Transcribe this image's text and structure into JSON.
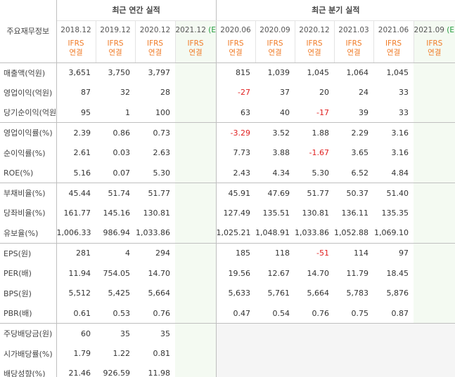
{
  "table": {
    "row_header_title": "주요재무정보",
    "groups": [
      {
        "label": "최근 연간 실적"
      },
      {
        "label": "최근 분기 실적"
      }
    ],
    "periods": [
      {
        "label": "2018.12",
        "basis_line1": "IFRS",
        "basis_line2": "연결"
      },
      {
        "label": "2019.12",
        "basis_line1": "IFRS",
        "basis_line2": "연결"
      },
      {
        "label": "2020.12",
        "basis_line1": "IFRS",
        "basis_line2": "연결"
      },
      {
        "label": "2021.12",
        "estimate": "(E)",
        "basis_line1": "IFRS",
        "basis_line2": "연결"
      },
      {
        "label": "2020.06",
        "basis_line1": "IFRS",
        "basis_line2": "연결"
      },
      {
        "label": "2020.09",
        "basis_line1": "IFRS",
        "basis_line2": "연결"
      },
      {
        "label": "2020.12",
        "basis_line1": "IFRS",
        "basis_line2": "연결"
      },
      {
        "label": "2021.03",
        "basis_line1": "IFRS",
        "basis_line2": "연결"
      },
      {
        "label": "2021.06",
        "basis_line1": "IFRS",
        "basis_line2": "연결"
      },
      {
        "label": "2021.09",
        "estimate": "(E)",
        "basis_line1": "IFRS",
        "basis_line2": "연결"
      }
    ],
    "rows": [
      {
        "label": "매출액(억원)",
        "values": [
          "3,651",
          "3,750",
          "3,797",
          "",
          "815",
          "1,039",
          "1,045",
          "1,064",
          "1,045",
          ""
        ]
      },
      {
        "label": "영업이익(억원)",
        "values": [
          "87",
          "32",
          "28",
          "",
          "-27",
          "37",
          "20",
          "24",
          "33",
          ""
        ]
      },
      {
        "label": "당기순이익(억원)",
        "values": [
          "95",
          "1",
          "100",
          "",
          "63",
          "40",
          "-17",
          "39",
          "33",
          ""
        ]
      },
      {
        "label": "영업이익률(%)",
        "values": [
          "2.39",
          "0.86",
          "0.73",
          "",
          "-3.29",
          "3.52",
          "1.88",
          "2.29",
          "3.16",
          ""
        ]
      },
      {
        "label": "순이익률(%)",
        "values": [
          "2.61",
          "0.03",
          "2.63",
          "",
          "7.73",
          "3.88",
          "-1.67",
          "3.65",
          "3.16",
          ""
        ]
      },
      {
        "label": "ROE(%)",
        "values": [
          "5.16",
          "0.07",
          "5.30",
          "",
          "2.43",
          "4.34",
          "5.30",
          "6.52",
          "4.84",
          ""
        ]
      },
      {
        "label": "부채비율(%)",
        "values": [
          "45.44",
          "51.74",
          "51.77",
          "",
          "45.91",
          "47.69",
          "51.77",
          "50.37",
          "51.40",
          ""
        ]
      },
      {
        "label": "당좌비율(%)",
        "values": [
          "161.77",
          "145.16",
          "130.81",
          "",
          "127.49",
          "135.51",
          "130.81",
          "136.11",
          "135.35",
          ""
        ]
      },
      {
        "label": "유보율(%)",
        "values": [
          "1,006.33",
          "986.94",
          "1,033.86",
          "",
          "1,025.21",
          "1,048.91",
          "1,033.86",
          "1,052.88",
          "1,069.10",
          ""
        ]
      },
      {
        "label": "EPS(원)",
        "values": [
          "281",
          "4",
          "294",
          "",
          "185",
          "118",
          "-51",
          "114",
          "97",
          ""
        ]
      },
      {
        "label": "PER(배)",
        "values": [
          "11.94",
          "754.05",
          "14.70",
          "",
          "19.56",
          "12.67",
          "14.70",
          "11.79",
          "18.45",
          ""
        ]
      },
      {
        "label": "BPS(원)",
        "values": [
          "5,512",
          "5,425",
          "5,664",
          "",
          "5,633",
          "5,761",
          "5,664",
          "5,783",
          "5,876",
          ""
        ]
      },
      {
        "label": "PBR(배)",
        "values": [
          "0.61",
          "0.53",
          "0.76",
          "",
          "0.47",
          "0.54",
          "0.76",
          "0.75",
          "0.87",
          ""
        ]
      },
      {
        "label": "주당배당금(원)",
        "values": [
          "60",
          "35",
          "35",
          "",
          "",
          "",
          "",
          "",
          "",
          ""
        ]
      },
      {
        "label": "시가배당률(%)",
        "values": [
          "1.79",
          "1.22",
          "0.81",
          "",
          "",
          "",
          "",
          "",
          "",
          ""
        ]
      },
      {
        "label": "배당성향(%)",
        "values": [
          "21.46",
          "926.59",
          "11.98",
          "",
          "",
          "",
          "",
          "",
          "",
          ""
        ]
      }
    ],
    "colors": {
      "negative": "#e02020",
      "basis": "#f07c28",
      "estimate": "#1f9a3a",
      "estimate_column_bg": "#f4faf2",
      "na_bg": "#f5f5f5"
    }
  }
}
